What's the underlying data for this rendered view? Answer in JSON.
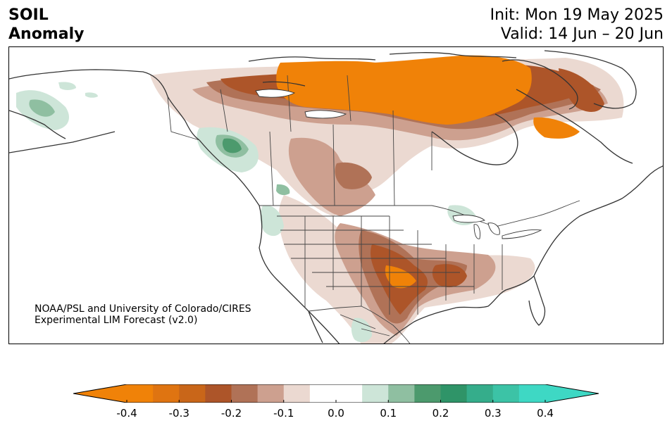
{
  "title": {
    "variable": "SOIL",
    "quantity": "Anomaly",
    "init": "Init: Mon 19 May 2025",
    "valid": "Valid: 14 Jun – 20 Jun"
  },
  "credit": {
    "line1": "NOAA/PSL and University of Colorado/CIRES",
    "line2": "Experimental LIM Forecast (v2.0)"
  },
  "colorbar": {
    "levels": [
      -0.4,
      -0.35,
      -0.3,
      -0.25,
      -0.2,
      -0.15,
      -0.1,
      -0.05,
      0.05,
      0.1,
      0.15,
      0.2,
      0.25,
      0.3,
      0.35,
      0.4
    ],
    "colors": [
      "#f08208",
      "#df7411",
      "#c96619",
      "#ad5529",
      "#b07257",
      "#cda08f",
      "#ebd9d1",
      "#ffffff",
      "#cde5d8",
      "#8fbfa1",
      "#4c9a6d",
      "#2f9468",
      "#35ad8b",
      "#3cc3a6",
      "#3ed8c4"
    ],
    "under_color": "#f08208",
    "over_color": "#3ed8c4",
    "tick_labels": [
      "-0.4",
      "-0.3",
      "-0.2",
      "-0.1",
      "0.0",
      "0.1",
      "0.2",
      "0.3",
      "0.4"
    ],
    "tick_values": [
      -0.4,
      -0.3,
      -0.2,
      -0.1,
      0.0,
      0.1,
      0.2,
      0.3,
      0.4
    ]
  },
  "map": {
    "region": "North America",
    "coastline_color": "#333333",
    "border_color": "#444444"
  }
}
